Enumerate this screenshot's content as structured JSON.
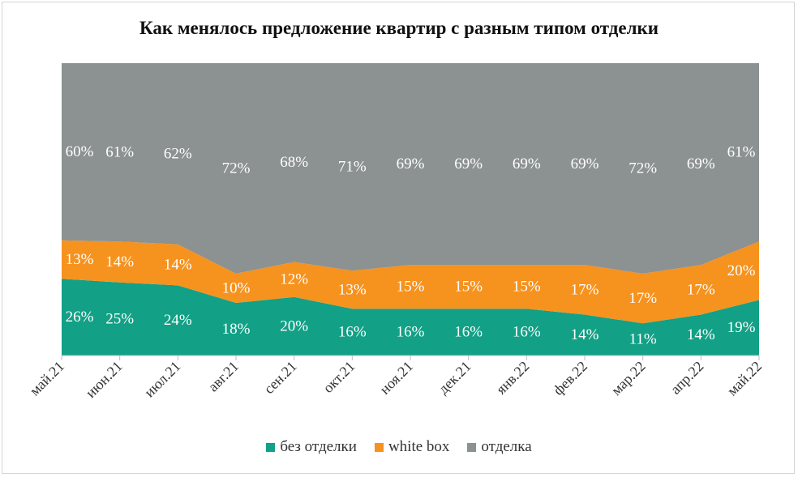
{
  "chart_data": {
    "type": "area",
    "stacked": true,
    "percent": true,
    "title": "Как менялось предложение квартир с разным типом отделки",
    "categories": [
      "май.21",
      "июн.21",
      "июл.21",
      "авг.21",
      "сен.21",
      "окт.21",
      "ноя.21",
      "дек.21",
      "янв.22",
      "фев.22",
      "мар.22",
      "апр.22",
      "май.22"
    ],
    "series": [
      {
        "name": "без отделки",
        "color": "#12a086",
        "values": [
          26,
          25,
          24,
          18,
          20,
          16,
          16,
          16,
          16,
          14,
          11,
          14,
          19
        ],
        "labels": [
          "26%",
          "25%",
          "24%",
          "18%",
          "20%",
          "16%",
          "16%",
          "16%",
          "16%",
          "14%",
          "11%",
          "14%",
          "19%"
        ]
      },
      {
        "name": "white box",
        "color": "#f6921e",
        "values": [
          13,
          14,
          14,
          10,
          12,
          13,
          15,
          15,
          15,
          17,
          17,
          17,
          20
        ],
        "labels": [
          "13%",
          "14%",
          "14%",
          "10%",
          "12%",
          "13%",
          "15%",
          "15%",
          "15%",
          "17%",
          "17%",
          "17%",
          "20%"
        ]
      },
      {
        "name": "отделка",
        "color": "#8c9191",
        "values": [
          60,
          61,
          62,
          72,
          68,
          71,
          69,
          69,
          69,
          69,
          72,
          69,
          61
        ],
        "labels": [
          "60%",
          "61%",
          "62%",
          "72%",
          "68%",
          "71%",
          "69%",
          "69%",
          "69%",
          "69%",
          "72%",
          "69%",
          "61%"
        ]
      }
    ],
    "ylim": [
      0,
      100
    ],
    "grid": false,
    "legend_position": "bottom"
  }
}
